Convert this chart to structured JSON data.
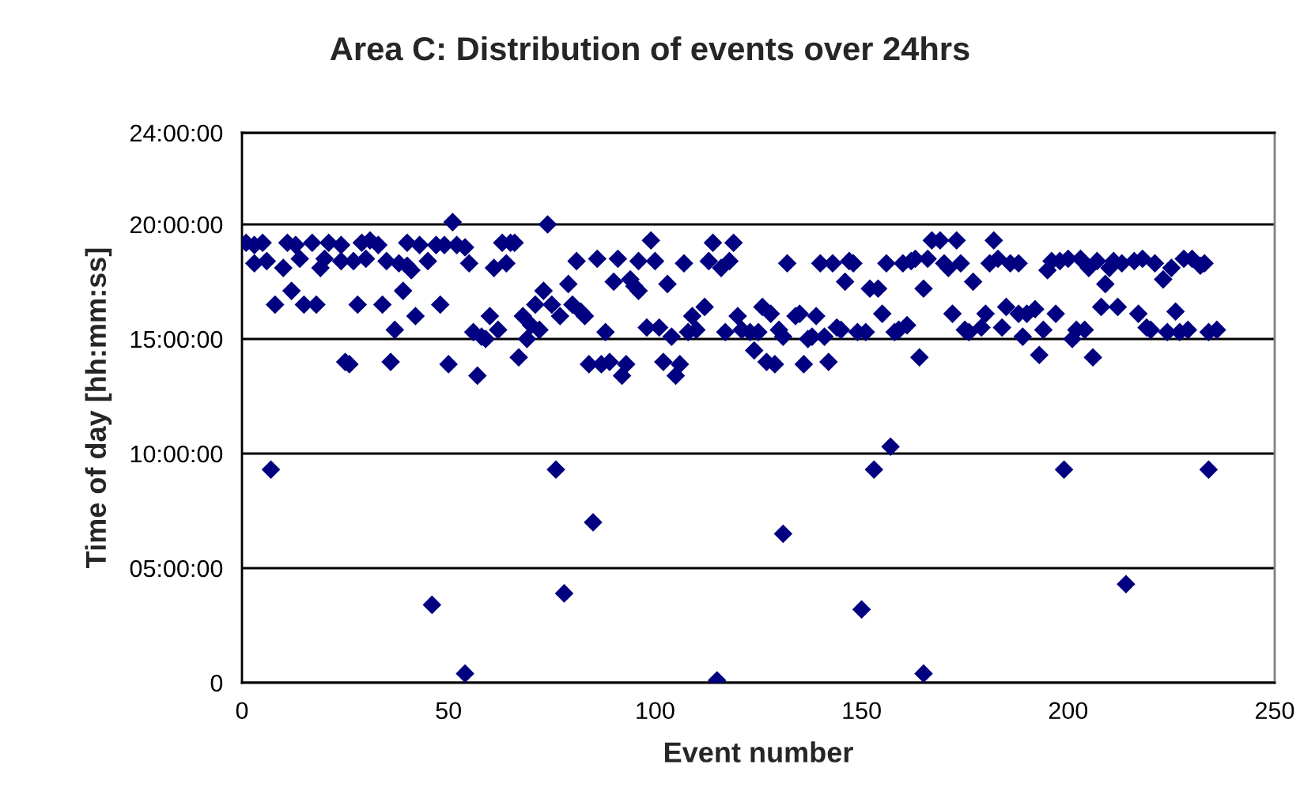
{
  "chart_data": {
    "type": "scatter",
    "title": "Area C: Distribution of events over 24hrs",
    "xlabel": "Event number",
    "ylabel": "Time of day [hh:mm:ss]",
    "xlim": [
      0,
      250
    ],
    "xticks": [
      0,
      50,
      100,
      150,
      200,
      250
    ],
    "ylim": [
      0,
      24
    ],
    "yticks": [
      {
        "value": 0,
        "label": "0"
      },
      {
        "value": 5,
        "label": "05:00:00"
      },
      {
        "value": 10,
        "label": "10:00:00"
      },
      {
        "value": 15,
        "label": "15:00:00"
      },
      {
        "value": 20,
        "label": "20:00:00"
      },
      {
        "value": 24,
        "label": "24:00:00"
      }
    ],
    "grid": "y",
    "legend": false,
    "marker": "diamond",
    "series": [
      {
        "color": "#000080",
        "x": [
          1,
          3,
          5,
          11,
          13,
          17,
          21,
          24,
          29,
          31,
          33,
          40,
          43,
          47,
          49,
          52,
          54,
          63,
          3,
          6,
          14,
          20,
          24,
          27,
          30,
          35,
          38,
          40,
          45,
          55,
          64,
          10,
          19,
          41,
          61,
          12,
          39,
          8,
          15,
          18,
          28,
          34,
          48,
          42,
          60,
          37,
          56,
          58,
          59,
          62,
          25,
          26,
          36,
          50,
          57,
          7,
          46,
          54,
          51,
          74,
          65,
          66,
          99,
          114,
          119,
          81,
          86,
          91,
          96,
          100,
          107,
          113,
          116,
          118,
          90,
          94,
          95,
          96,
          103,
          79,
          73,
          71,
          75,
          77,
          80,
          82,
          83,
          68,
          70,
          72,
          69,
          88,
          98,
          101,
          104,
          108,
          109,
          110,
          112,
          120,
          117,
          121,
          123,
          124,
          67,
          84,
          87,
          89,
          93,
          92,
          102,
          105,
          106,
          76,
          85,
          78,
          115,
          167,
          169,
          173,
          182,
          132,
          140,
          143,
          147,
          148,
          156,
          160,
          162,
          163,
          166,
          170,
          171,
          174,
          181,
          183,
          186,
          146,
          152,
          154,
          165,
          177,
          126,
          128,
          134,
          135,
          139,
          155,
          172,
          180,
          185,
          125,
          130,
          131,
          137,
          138,
          141,
          144,
          145,
          149,
          151,
          158,
          159,
          161,
          175,
          176,
          179,
          184,
          127,
          129,
          136,
          142,
          164,
          157,
          153,
          131,
          150,
          165,
          188,
          195,
          196,
          198,
          200,
          203,
          205,
          207,
          210,
          211,
          213,
          216,
          218,
          221,
          223,
          225,
          228,
          230,
          232,
          233,
          209,
          188,
          190,
          192,
          197,
          208,
          212,
          217,
          226,
          189,
          194,
          201,
          202,
          204,
          206,
          193,
          219,
          220,
          224,
          227,
          229,
          234,
          236,
          199,
          234,
          214
        ],
        "values": [
          19.2,
          19.1,
          19.2,
          19.2,
          19.1,
          19.2,
          19.2,
          19.1,
          19.2,
          19.3,
          19.1,
          19.2,
          19.1,
          19.1,
          19.1,
          19.1,
          19.0,
          19.2,
          18.3,
          18.4,
          18.5,
          18.5,
          18.4,
          18.4,
          18.5,
          18.4,
          18.3,
          18.2,
          18.4,
          18.3,
          18.3,
          18.1,
          18.1,
          18.0,
          18.1,
          17.1,
          17.1,
          16.5,
          16.5,
          16.5,
          16.5,
          16.5,
          16.5,
          16.0,
          16.0,
          15.4,
          15.3,
          15.1,
          15.0,
          15.4,
          14.0,
          13.9,
          14.0,
          13.9,
          13.4,
          9.3,
          3.4,
          0.4,
          20.1,
          20.0,
          19.2,
          19.2,
          19.3,
          19.2,
          19.2,
          18.4,
          18.5,
          18.5,
          18.4,
          18.4,
          18.3,
          18.4,
          18.1,
          18.4,
          17.5,
          17.6,
          17.3,
          17.1,
          17.4,
          17.4,
          17.1,
          16.5,
          16.5,
          16.0,
          16.5,
          16.2,
          16.0,
          16.0,
          15.6,
          15.4,
          15.0,
          15.3,
          15.5,
          15.5,
          15.1,
          15.3,
          16.0,
          15.4,
          16.4,
          16.0,
          15.3,
          15.4,
          15.3,
          14.5,
          14.2,
          13.9,
          13.9,
          14.0,
          13.9,
          13.4,
          14.0,
          13.4,
          13.9,
          9.3,
          7.0,
          3.9,
          0.1,
          19.3,
          19.3,
          19.3,
          19.3,
          18.3,
          18.3,
          18.3,
          18.4,
          18.3,
          18.3,
          18.3,
          18.4,
          18.5,
          18.5,
          18.3,
          18.1,
          18.3,
          18.3,
          18.5,
          18.3,
          17.5,
          17.2,
          17.2,
          17.2,
          17.5,
          16.4,
          16.1,
          16.0,
          16.1,
          16.0,
          16.1,
          16.1,
          16.1,
          16.4,
          15.3,
          15.4,
          15.1,
          15.0,
          15.1,
          15.1,
          15.5,
          15.4,
          15.3,
          15.3,
          15.3,
          15.4,
          15.6,
          15.4,
          15.3,
          15.5,
          15.5,
          14.0,
          13.9,
          13.9,
          14.0,
          14.2,
          10.3,
          9.3,
          6.5,
          3.2,
          0.4,
          18.3,
          18.0,
          18.4,
          18.4,
          18.5,
          18.5,
          18.1,
          18.4,
          18.1,
          18.4,
          18.3,
          18.4,
          18.5,
          18.3,
          17.6,
          18.1,
          18.5,
          18.5,
          18.2,
          18.3,
          17.4,
          16.1,
          16.1,
          16.3,
          16.1,
          16.4,
          16.4,
          16.1,
          16.2,
          15.1,
          15.4,
          15.0,
          15.4,
          15.4,
          14.2,
          14.3,
          15.5,
          15.4,
          15.3,
          15.3,
          15.4,
          15.3,
          15.4,
          9.3,
          9.3,
          4.3
        ]
      }
    ]
  }
}
